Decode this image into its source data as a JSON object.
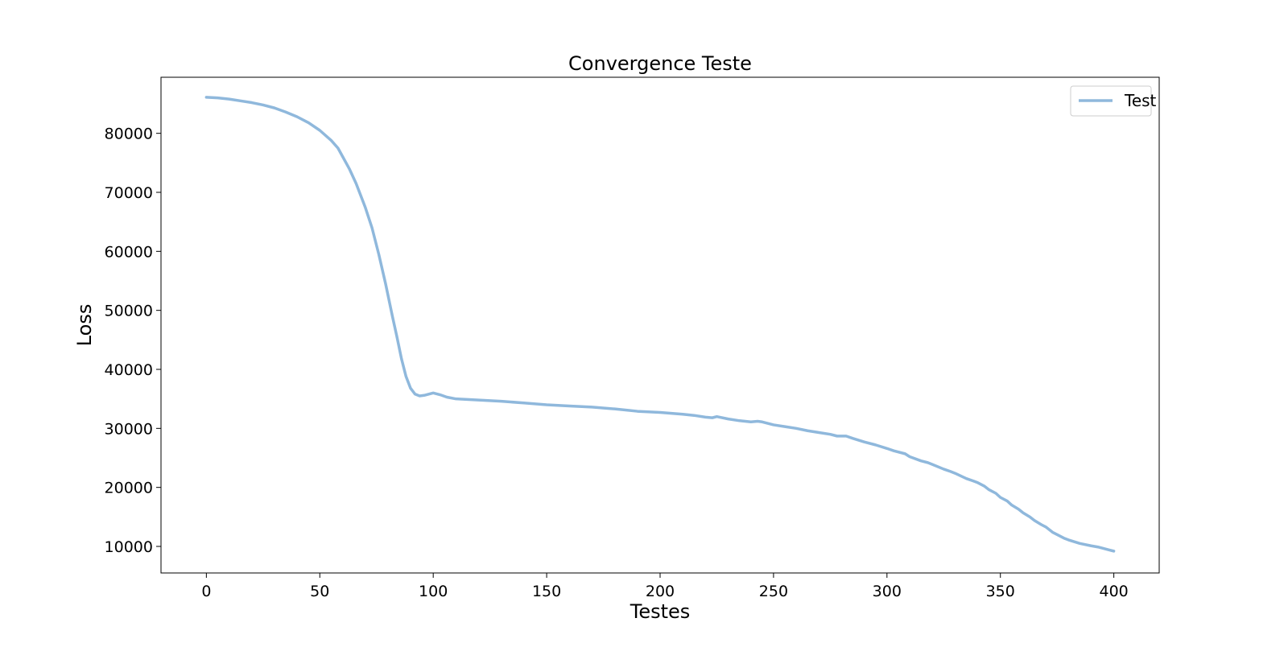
{
  "chart_data": {
    "type": "line",
    "title": "Convergence Teste",
    "xlabel": "Testes",
    "ylabel": "Loss",
    "xlim": [
      -20,
      420
    ],
    "ylim": [
      5500,
      89500
    ],
    "xticks": [
      0,
      50,
      100,
      150,
      200,
      250,
      300,
      350,
      400
    ],
    "yticks": [
      10000,
      20000,
      30000,
      40000,
      50000,
      60000,
      70000,
      80000
    ],
    "grid": false,
    "legend_position": "top-right",
    "series": [
      {
        "name": "Test",
        "color": "#8fb8dc",
        "x": [
          0,
          5,
          10,
          15,
          20,
          25,
          30,
          35,
          40,
          45,
          50,
          55,
          58,
          60,
          63,
          66,
          70,
          73,
          76,
          79,
          82,
          84,
          86,
          88,
          90,
          92,
          94,
          96,
          98,
          100,
          103,
          106,
          110,
          120,
          130,
          140,
          150,
          160,
          170,
          180,
          190,
          200,
          210,
          215,
          220,
          223,
          225,
          230,
          235,
          240,
          243,
          245,
          250,
          255,
          260,
          265,
          270,
          275,
          278,
          282,
          285,
          290,
          295,
          300,
          303,
          308,
          310,
          315,
          318,
          320,
          325,
          328,
          330,
          335,
          338,
          340,
          343,
          345,
          348,
          350,
          353,
          355,
          358,
          360,
          363,
          365,
          368,
          370,
          373,
          375,
          378,
          380,
          385,
          390,
          393,
          395,
          398,
          400
        ],
        "y": [
          86100,
          86000,
          85800,
          85500,
          85200,
          84800,
          84300,
          83600,
          82800,
          81800,
          80500,
          78800,
          77500,
          76100,
          74000,
          71500,
          67500,
          64000,
          59500,
          54500,
          49000,
          45500,
          41800,
          38800,
          36800,
          35800,
          35500,
          35600,
          35800,
          36000,
          35700,
          35300,
          35000,
          34800,
          34600,
          34300,
          34000,
          33800,
          33600,
          33300,
          32900,
          32700,
          32400,
          32200,
          31900,
          31800,
          32000,
          31600,
          31300,
          31100,
          31200,
          31100,
          30600,
          30300,
          30000,
          29600,
          29300,
          29000,
          28700,
          28700,
          28300,
          27700,
          27200,
          26600,
          26200,
          25700,
          25200,
          24500,
          24200,
          23900,
          23100,
          22700,
          22400,
          21500,
          21100,
          20800,
          20200,
          19600,
          19000,
          18300,
          17700,
          17000,
          16300,
          15700,
          15000,
          14400,
          13700,
          13300,
          12400,
          12000,
          11400,
          11100,
          10500,
          10100,
          9900,
          9700,
          9400,
          9200
        ]
      }
    ]
  }
}
